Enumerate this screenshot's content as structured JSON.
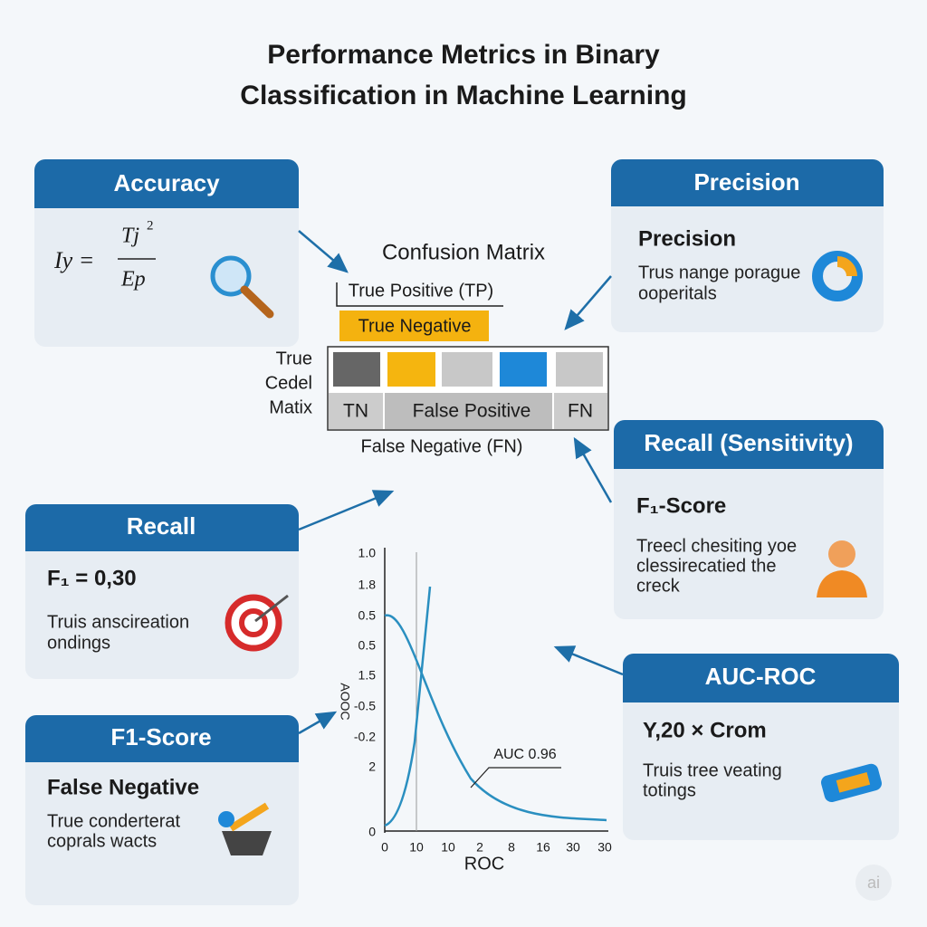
{
  "title": {
    "line1": "Performance Metrics in Binary",
    "line2": "Classification in Machine Learning"
  },
  "cards": {
    "accuracy": {
      "title": "Accuracy",
      "formula": {
        "lhs": "Iy =",
        "numerator": "Tj",
        "numerator_sup": "2",
        "denominator": "Ep"
      }
    },
    "precision": {
      "title": "Precision",
      "subtitle": "Precision",
      "body": [
        "Trus nange porague",
        "ooperitals"
      ]
    },
    "recall_sensitivity": {
      "title": "Recall (Sensitivity)",
      "subtitle": "F₁-Score",
      "body": [
        "Treecl chesiting yoe",
        "clessirecatied the",
        "creck"
      ]
    },
    "recall": {
      "title": "Recall",
      "subtitle": "F₁ = 0,30",
      "body": [
        "Truis anscireation",
        "ondings"
      ]
    },
    "f1_score": {
      "title": "F1-Score",
      "subtitle": "False Negative",
      "body": [
        "True conderterat",
        "coprals wacts"
      ]
    },
    "auc_roc": {
      "title": "AUC-ROC",
      "subtitle": "Y,20 × Crom",
      "body": [
        "Truis tree veating",
        "totings"
      ]
    }
  },
  "matrix": {
    "title": "Confusion Matrix",
    "top_label": "True Positive (TP)",
    "highlight": "True Negative",
    "side_label": [
      "True",
      "Cedel",
      "Matix"
    ],
    "cells": [
      "TN",
      "False Positive",
      "FN"
    ],
    "bottom_label": "False Negative (FN)"
  },
  "plot": {
    "y_axis_label": "AOOC",
    "x_axis_label": "ROC",
    "annotation": "AUC 0.96",
    "y_labels": [
      "1.0",
      "1.8",
      "0.5",
      "0.5",
      "1.5",
      "-0.5",
      "-0.2",
      "2",
      "0"
    ],
    "x_labels": [
      "0",
      "10",
      "10",
      "2",
      "8",
      "16",
      "30",
      "30"
    ]
  },
  "watermark": "ai"
}
